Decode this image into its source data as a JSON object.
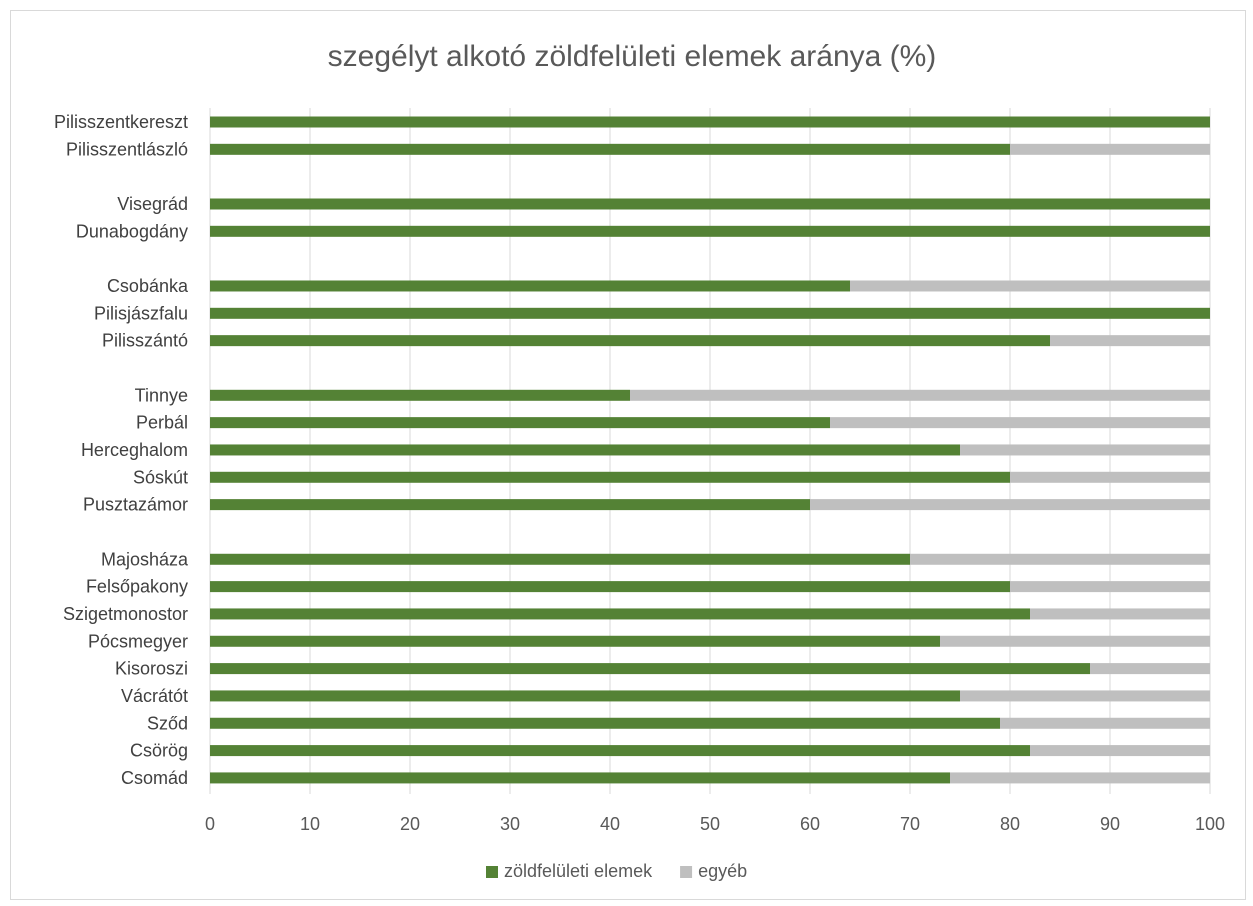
{
  "chart_data": {
    "type": "bar",
    "orientation": "horizontal",
    "stacked": true,
    "title": "szegélyt alkotó zöldfelületi elemek aránya (%)",
    "xlim": [
      0,
      100
    ],
    "x_ticks": [
      "0",
      "10",
      "20",
      "30",
      "40",
      "50",
      "60",
      "70",
      "80",
      "90",
      "100"
    ],
    "grid": true,
    "legend_position": "bottom",
    "categories": [
      "Pilisszentkereszt",
      "Pilisszentlászló",
      "",
      "Visegrád",
      "Dunabogdány",
      "",
      "Csobánka",
      "Pilisjászfalu",
      "Pilisszántó",
      "",
      "Tinnye",
      "Perbál",
      "Herceghalom",
      "Sóskút",
      "Pusztazámor",
      "",
      "Majosháza",
      "Felsőpakony",
      "Szigetmonostor",
      "Pócsmegyer",
      "Kisoroszi",
      "Vácrátót",
      "Sződ",
      "Csörög",
      "Csomád"
    ],
    "series": [
      {
        "name": "zöldfelületi elemek",
        "color": "#548235",
        "values": [
          100,
          80,
          null,
          100,
          100,
          null,
          64,
          100,
          84,
          null,
          42,
          62,
          75,
          80,
          60,
          null,
          70,
          80,
          82,
          73,
          88,
          75,
          79,
          82,
          74
        ]
      },
      {
        "name": "egyéb",
        "color": "#bfbfbf",
        "values": [
          0,
          20,
          null,
          0,
          0,
          null,
          36,
          0,
          16,
          null,
          58,
          38,
          25,
          20,
          40,
          null,
          30,
          20,
          18,
          27,
          12,
          25,
          21,
          18,
          26
        ]
      }
    ]
  }
}
